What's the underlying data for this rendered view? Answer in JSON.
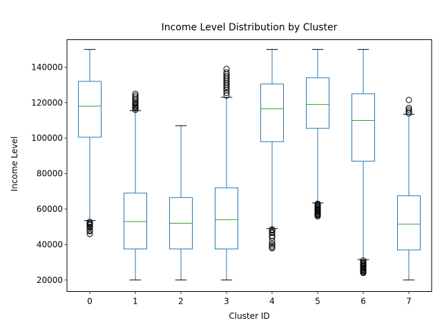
{
  "chart_data": {
    "type": "box",
    "title": "Income Level Distribution by Cluster",
    "xlabel": "Cluster ID",
    "ylabel": "Income Level",
    "ylim": [
      13500,
      155500
    ],
    "yticks": [
      20000,
      40000,
      60000,
      80000,
      100000,
      120000,
      140000
    ],
    "grid": false,
    "colors": {
      "box": "#1f77b4",
      "median": "#2ca02c",
      "outlier": "#000000"
    },
    "categories": [
      "0",
      "1",
      "2",
      "3",
      "4",
      "5",
      "6",
      "7"
    ],
    "boxes": [
      {
        "cluster": "0",
        "whisker_low": 53500,
        "q1": 100500,
        "median": 118000,
        "q3": 132000,
        "whisker_high": 150000,
        "outliers": [
          52800,
          52000,
          51500,
          51000,
          50000,
          49500,
          48000,
          47500,
          46000
        ]
      },
      {
        "cluster": "1",
        "whisker_low": 20000,
        "q1": 37500,
        "median": 53000,
        "q3": 69000,
        "whisker_high": 115500,
        "outliers": [
          116000,
          116800,
          117500,
          118000,
          118700,
          119500,
          120000,
          121000,
          122000,
          123000,
          124000,
          125000
        ]
      },
      {
        "cluster": "2",
        "whisker_low": 20000,
        "q1": 37500,
        "median": 52000,
        "q3": 66500,
        "whisker_high": 107000,
        "outliers": []
      },
      {
        "cluster": "3",
        "whisker_low": 20000,
        "q1": 37500,
        "median": 54000,
        "q3": 72000,
        "whisker_high": 123000,
        "outliers": [
          124000,
          125500,
          127000,
          128000,
          129000,
          130000,
          131000,
          132000,
          133000,
          134000,
          135000,
          136000,
          137000,
          139000
        ]
      },
      {
        "cluster": "4",
        "whisker_low": 49000,
        "q1": 98000,
        "median": 116500,
        "q3": 130500,
        "whisker_high": 150000,
        "outliers": [
          48500,
          48000,
          47000,
          46500,
          45000,
          44000,
          42000,
          40500,
          39500,
          38500,
          38000
        ]
      },
      {
        "cluster": "5",
        "whisker_low": 63500,
        "q1": 105500,
        "median": 119000,
        "q3": 134000,
        "whisker_high": 150000,
        "outliers": [
          63000,
          62500,
          62000,
          61500,
          61000,
          60500,
          60000,
          59500,
          59000,
          58500,
          58000,
          57500,
          57000,
          56500,
          56000
        ]
      },
      {
        "cluster": "6",
        "whisker_low": 31500,
        "q1": 87000,
        "median": 110000,
        "q3": 125000,
        "whisker_high": 150000,
        "outliers": [
          31000,
          30000,
          29500,
          29000,
          28500,
          28000,
          27500,
          27000,
          26500,
          26000,
          25500,
          25000,
          24500,
          24000
        ]
      },
      {
        "cluster": "7",
        "whisker_low": 20000,
        "q1": 37000,
        "median": 51500,
        "q3": 67500,
        "whisker_high": 113500,
        "outliers": [
          114000,
          115000,
          116000,
          117000,
          121500
        ]
      }
    ]
  }
}
